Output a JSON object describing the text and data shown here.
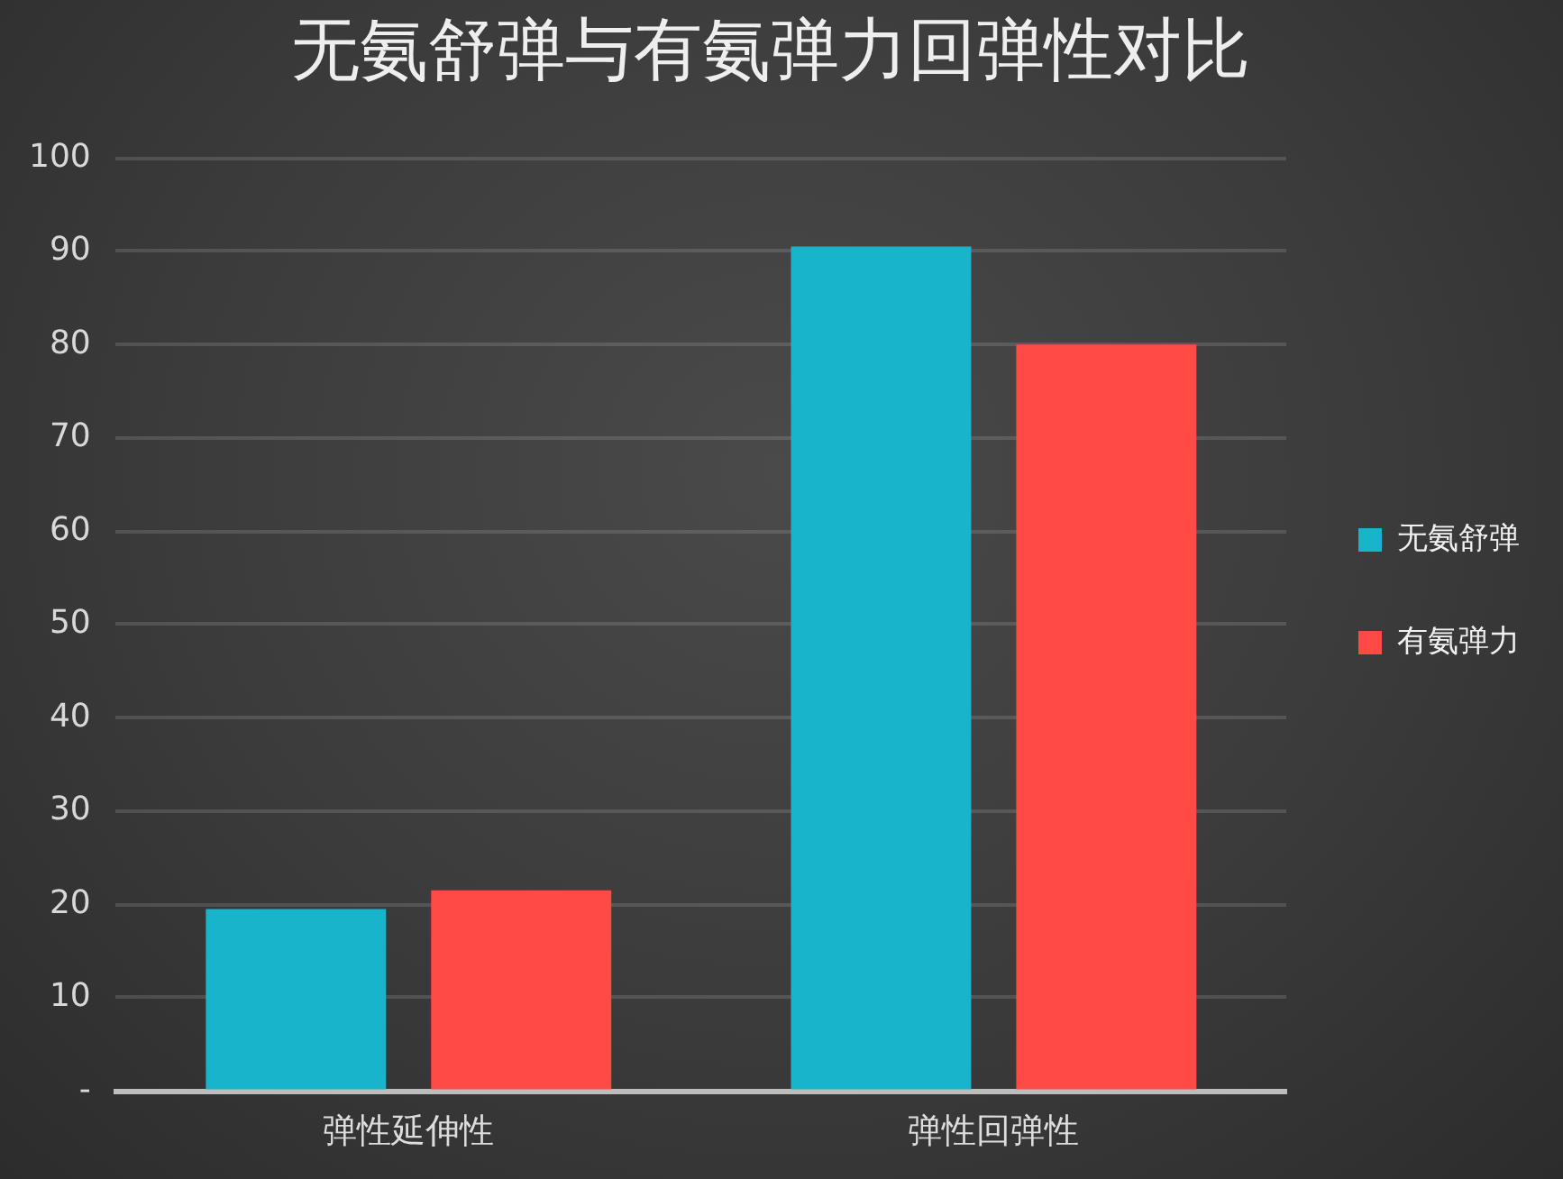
{
  "chart_data": {
    "type": "bar",
    "title": "无氨舒弹与有氨弹力回弹性对比",
    "categories": [
      "弹性延伸性",
      "弹性回弹性"
    ],
    "series": [
      {
        "name": "无氨舒弹",
        "color": "#17b4cc",
        "values": [
          19.5,
          90.5
        ]
      },
      {
        "name": "有氨弹力",
        "color": "#ff4a45",
        "values": [
          21.5,
          80
        ]
      }
    ],
    "ylim": [
      0,
      100
    ],
    "yticks": [
      {
        "value": 0,
        "label": "-"
      },
      10,
      20,
      30,
      40,
      50,
      60,
      70,
      80,
      90,
      100
    ],
    "grid": "y",
    "legend": "right"
  }
}
